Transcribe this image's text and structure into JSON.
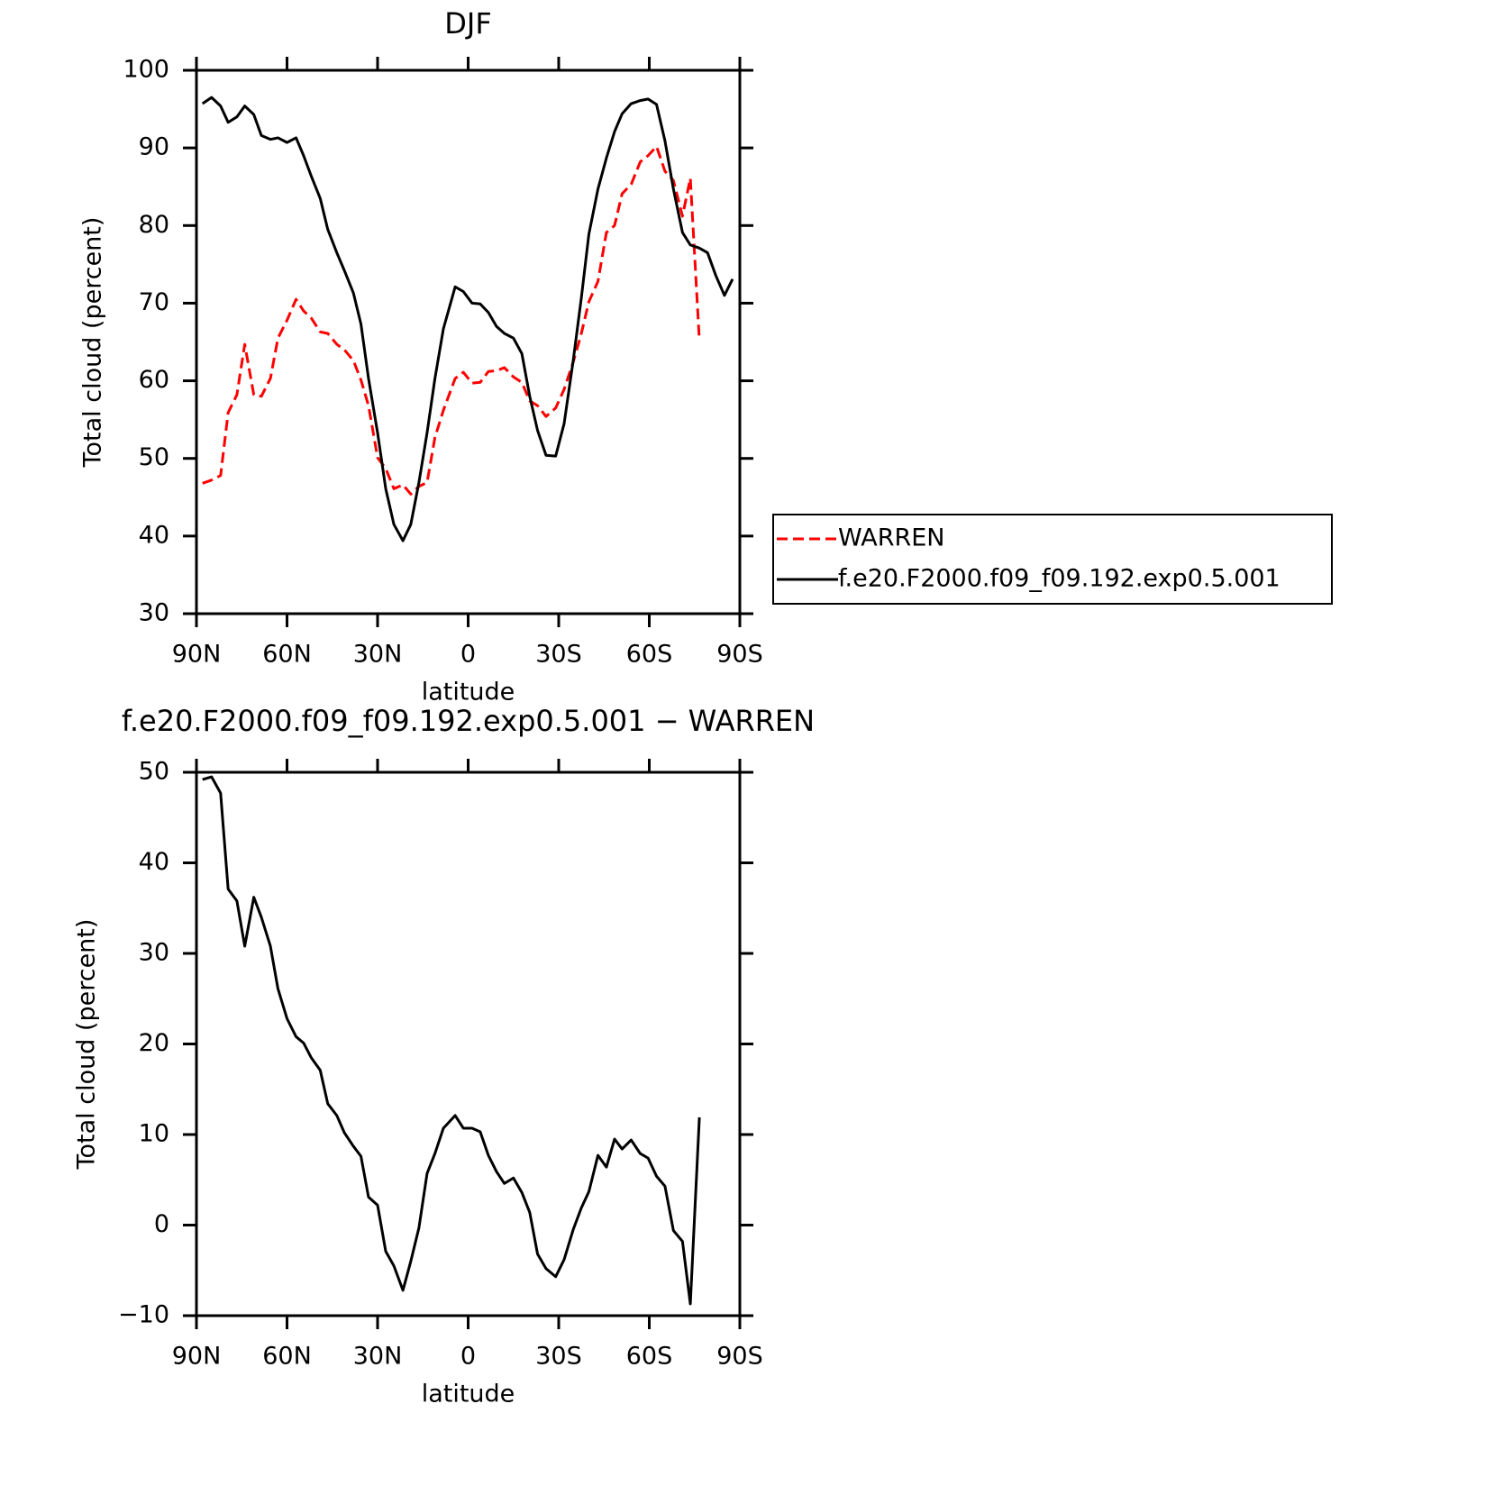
{
  "chart_data": [
    {
      "type": "line",
      "title": "DJF",
      "xlabel": "latitude",
      "ylabel": "Total cloud (percent)",
      "x": [
        88,
        85,
        82,
        79.5,
        76.6,
        74,
        71,
        68.5,
        65.5,
        63,
        60,
        57,
        54.5,
        52,
        49,
        46.5,
        43.5,
        41,
        38,
        35.5,
        33,
        30,
        27.3,
        24.6,
        21.6,
        19,
        16.3,
        13.6,
        11,
        8.2,
        4.3,
        1.6,
        -1.3,
        -4,
        -6.7,
        -9.4,
        -12,
        -15,
        -17.8,
        -20.4,
        -23,
        -25.8,
        -29,
        -31.8,
        -34.8,
        -37.5,
        -40,
        -43,
        -45.8,
        -48.5,
        -51,
        -54,
        -57,
        -59.6,
        -62.4,
        -65.2,
        -68,
        -71,
        -73.6,
        -76.6,
        -79.3,
        -82,
        -84.9,
        -87.6
      ],
      "series": [
        {
          "name": "WARREN",
          "color": "#ff0000",
          "linestyle": "dashed",
          "values": [
            46.8,
            47.2,
            47.8,
            55.9,
            58.2,
            64.7,
            58.2,
            58.0,
            60.3,
            65.5,
            67.8,
            70.5,
            69.0,
            68.1,
            66.3,
            66.1,
            64.7,
            64.0,
            62.6,
            60.1,
            56.8,
            50.1,
            48.7,
            46.1,
            46.6,
            45.4,
            46.4,
            46.9,
            52.7,
            56.2,
            60.3,
            61.1,
            59.7,
            59.8,
            61.2,
            61.3,
            61.7,
            60.5,
            59.8,
            57.4,
            56.8,
            55.4,
            56.5,
            58.9,
            62.4,
            66.1,
            70.2,
            72.8,
            79.1,
            80.0,
            84.1,
            85.3,
            88.2,
            89.0,
            90.2,
            87.0,
            85.8,
            81.2,
            86.1,
            65.2,
            null,
            null,
            null,
            null
          ]
        },
        {
          "name": "f.e20.F2000.f09_f09.192.exp0.5.001",
          "color": "#000000",
          "linestyle": "solid",
          "values": [
            95.7,
            96.5,
            95.4,
            93.3,
            94.0,
            95.4,
            94.3,
            91.6,
            91.1,
            91.3,
            90.7,
            91.3,
            89.0,
            86.4,
            83.5,
            79.5,
            76.5,
            74.2,
            71.3,
            67.3,
            60.3,
            53.3,
            46.1,
            41.5,
            39.4,
            41.5,
            46.9,
            53.3,
            60.3,
            66.7,
            72.1,
            71.5,
            70.0,
            69.9,
            68.8,
            67.0,
            66.1,
            65.5,
            63.5,
            58.0,
            53.6,
            50.4,
            50.3,
            54.5,
            62.6,
            70.7,
            78.9,
            84.7,
            88.7,
            92.1,
            94.4,
            95.7,
            96.1,
            96.3,
            95.6,
            90.9,
            84.7,
            79.1,
            77.5,
            77.1,
            76.5,
            73.6,
            71.0,
            73.1
          ]
        }
      ],
      "xlim": [
        90,
        -90
      ],
      "ylim": [
        30,
        100
      ],
      "xticks": [
        {
          "value": 90,
          "label": "90N"
        },
        {
          "value": 60,
          "label": "60N"
        },
        {
          "value": 30,
          "label": "30N"
        },
        0,
        {
          "value": -30,
          "label": "30S"
        },
        {
          "value": -60,
          "label": "60S"
        },
        {
          "value": -90,
          "label": "90S"
        }
      ],
      "yticks": [
        30,
        40,
        50,
        60,
        70,
        80,
        90,
        100
      ],
      "legend": "right"
    },
    {
      "type": "line",
      "title": "f.e20.F2000.f09_f09.192.exp0.5.001 − WARREN",
      "xlabel": "latitude",
      "ylabel": "Total cloud (percent)",
      "x": [
        88,
        85,
        82,
        79.5,
        76.6,
        74,
        71,
        68.5,
        65.5,
        63,
        60,
        57,
        54.5,
        52,
        49,
        46.5,
        43.5,
        41,
        38,
        35.5,
        33,
        30,
        27.3,
        24.6,
        21.6,
        19,
        16.3,
        13.6,
        11,
        8.2,
        4.3,
        1.6,
        -1.3,
        -4,
        -6.7,
        -9.4,
        -12,
        -15,
        -17.8,
        -20.4,
        -23,
        -25.8,
        -29,
        -31.8,
        -34.8,
        -37.5,
        -40,
        -43,
        -45.8,
        -48.5,
        -51,
        -54,
        -57,
        -59.6,
        -62.4,
        -65.2,
        -68,
        -71,
        -73.6,
        -76.6
      ],
      "series": [
        {
          "color": "#000000",
          "linestyle": "solid",
          "values": [
            49.2,
            49.5,
            47.7,
            37.1,
            35.8,
            30.8,
            36.2,
            34.0,
            30.8,
            26.1,
            22.8,
            20.8,
            20.1,
            18.5,
            17.1,
            13.4,
            12.1,
            10.2,
            8.7,
            7.6,
            3.1,
            2.2,
            -2.9,
            -4.5,
            -7.2,
            -4.0,
            -0.3,
            5.7,
            7.9,
            10.7,
            12.1,
            10.7,
            10.7,
            10.3,
            7.7,
            5.9,
            4.6,
            5.2,
            3.6,
            1.4,
            -3.2,
            -4.8,
            -5.7,
            -3.8,
            -0.5,
            1.9,
            3.7,
            7.7,
            6.4,
            9.5,
            8.4,
            9.4,
            7.9,
            7.4,
            5.4,
            4.3,
            -0.6,
            -1.8,
            -8.7,
            11.9
          ]
        }
      ],
      "xlim": [
        90,
        -90
      ],
      "ylim": [
        -10,
        50
      ],
      "xticks": [
        {
          "value": 90,
          "label": "90N"
        },
        {
          "value": 60,
          "label": "60N"
        },
        {
          "value": 30,
          "label": "30N"
        },
        0,
        {
          "value": -30,
          "label": "30S"
        },
        {
          "value": -60,
          "label": "60S"
        },
        {
          "value": -90,
          "label": "90S"
        }
      ],
      "yticks": [
        {
          "value": -10,
          "label": "−10"
        },
        0,
        10,
        20,
        30,
        40,
        50
      ]
    }
  ]
}
